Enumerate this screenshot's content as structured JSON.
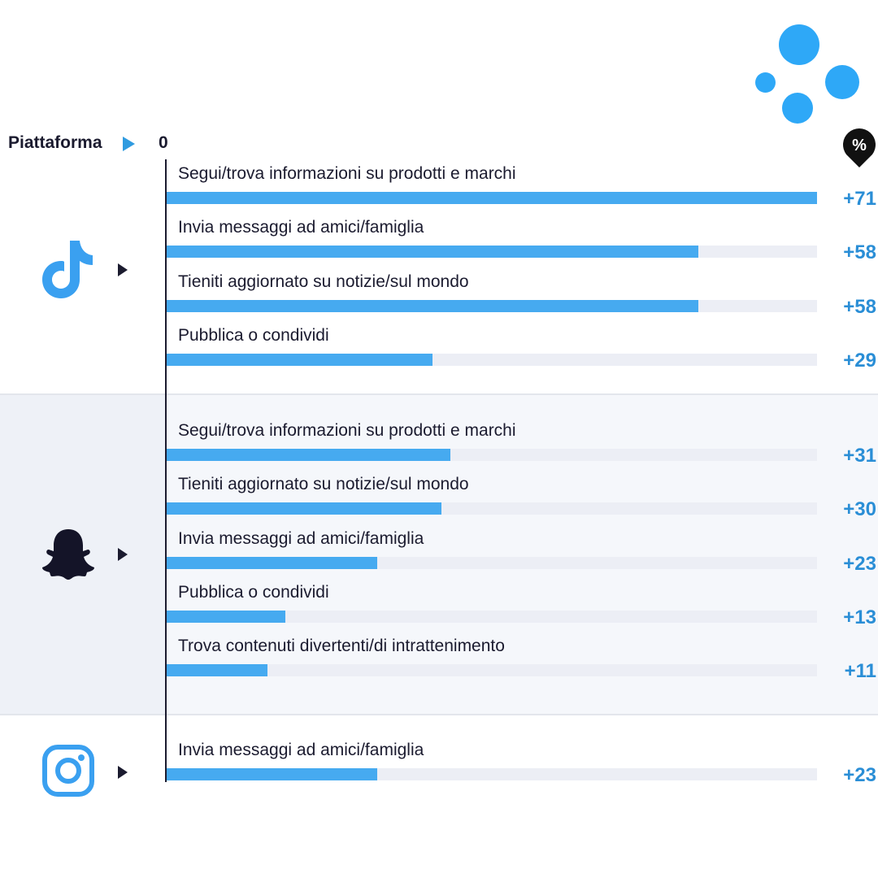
{
  "header": {
    "label": "Piattaforma",
    "axis_zero": "0",
    "unit_badge": "%"
  },
  "colors": {
    "accent": "#46aaf0",
    "value_text": "#2a8ed6",
    "dark": "#1b1b2f",
    "tiktok": "#3aa0f0",
    "instagram": "#3aa0f0",
    "decor_dots": "#2ea8f7"
  },
  "platforms": [
    {
      "icon": "tiktok-icon",
      "name": "TikTok"
    },
    {
      "icon": "snapchat-icon",
      "name": "Snapchat"
    },
    {
      "icon": "instagram-icon",
      "name": "Instagram"
    }
  ],
  "chart_data": {
    "type": "bar",
    "orientation": "horizontal",
    "xlim": [
      0,
      71
    ],
    "groups": [
      {
        "platform": "tiktok-icon",
        "rows": [
          {
            "label": "Segui/trova informazioni su prodotti e marchi",
            "value": 71,
            "display": "+71"
          },
          {
            "label": "Invia messaggi ad amici/famiglia",
            "value": 58,
            "display": "+58"
          },
          {
            "label": "Tieniti aggiornato su notizie/sul mondo",
            "value": 58,
            "display": "+58"
          },
          {
            "label": "Pubblica o condividi",
            "value": 29,
            "display": "+29"
          }
        ]
      },
      {
        "platform": "snapchat-icon",
        "rows": [
          {
            "label": "Segui/trova informazioni su prodotti e marchi",
            "value": 31,
            "display": "+31"
          },
          {
            "label": "Tieniti aggiornato su notizie/sul mondo",
            "value": 30,
            "display": "+30"
          },
          {
            "label": "Invia messaggi ad amici/famiglia",
            "value": 23,
            "display": "+23"
          },
          {
            "label": "Pubblica o condividi",
            "value": 13,
            "display": "+13"
          },
          {
            "label": "Trova contenuti divertenti/di intrattenimento",
            "value": 11,
            "display": "+11"
          }
        ]
      },
      {
        "platform": "instagram-icon",
        "rows": [
          {
            "label": "Invia messaggi ad amici/famiglia",
            "value": 23,
            "display": "+23"
          }
        ]
      }
    ]
  }
}
